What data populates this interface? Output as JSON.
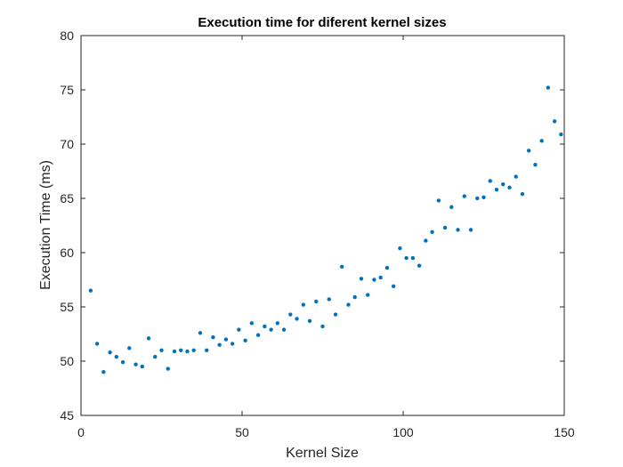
{
  "chart_data": {
    "type": "scatter",
    "title": "Execution time for diferent kernel sizes",
    "xlabel": "Kernel Size",
    "ylabel": "Execution Time (ms)",
    "xlim": [
      0,
      150
    ],
    "ylim": [
      45,
      80
    ],
    "x_ticks": [
      "0",
      "50",
      "100",
      "150"
    ],
    "y_ticks": [
      "45",
      "50",
      "55",
      "60",
      "65",
      "70",
      "75",
      "80"
    ],
    "grid": false,
    "marker_color": "#0072BD",
    "series": [
      {
        "x": [
          3,
          5,
          7,
          9,
          11,
          13,
          15,
          17,
          19,
          21,
          23,
          25,
          27,
          29,
          31,
          33,
          35,
          37,
          39,
          41,
          43,
          45,
          47,
          49,
          51,
          53,
          55,
          57,
          59,
          61,
          63,
          65,
          67,
          69,
          71,
          73,
          75,
          77,
          79,
          81,
          83,
          85,
          87,
          89,
          91,
          93,
          95,
          97,
          99,
          101,
          103,
          105,
          107,
          109,
          111,
          113,
          115,
          117,
          119,
          121,
          123,
          125,
          127,
          129,
          131,
          133,
          135,
          137,
          139,
          141,
          143,
          145,
          147,
          149
        ],
        "y": [
          56.5,
          51.6,
          49.0,
          50.8,
          50.4,
          49.9,
          51.2,
          49.7,
          49.5,
          52.1,
          50.4,
          51.0,
          49.3,
          50.9,
          51.0,
          50.9,
          51.0,
          52.6,
          51.0,
          52.2,
          51.5,
          52.0,
          51.6,
          52.9,
          51.9,
          53.5,
          52.4,
          53.2,
          52.9,
          53.5,
          52.9,
          54.3,
          53.9,
          55.2,
          53.7,
          55.5,
          53.2,
          55.7,
          54.3,
          58.7,
          55.2,
          55.9,
          57.6,
          56.1,
          57.5,
          57.7,
          58.6,
          56.9,
          60.4,
          59.5,
          59.5,
          58.8,
          61.1,
          61.9,
          64.8,
          62.3,
          64.2,
          62.1,
          65.2,
          62.1,
          65.0,
          65.1,
          66.6,
          65.8,
          66.3,
          66.0,
          67.0,
          65.4,
          69.4,
          68.1,
          70.3,
          75.2,
          72.1,
          70.9
        ]
      }
    ]
  }
}
